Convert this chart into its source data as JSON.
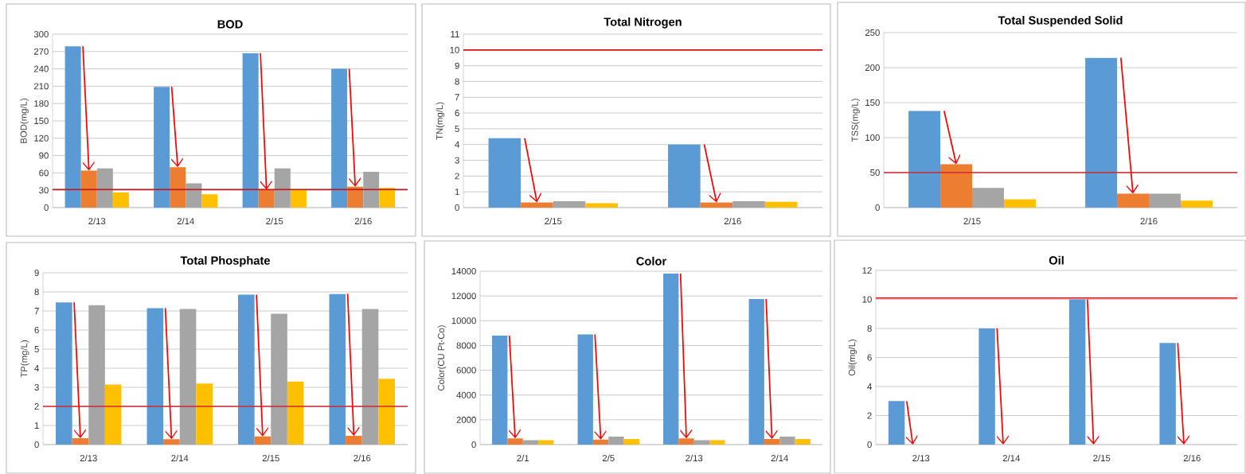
{
  "chart_data": [
    {
      "type": "bar",
      "title": "BOD",
      "ylabel": "BOD(mg/L)",
      "categories": [
        "2/13",
        "2/14",
        "2/15",
        "2/16"
      ],
      "ylim": [
        0,
        300
      ],
      "yticks": [
        0,
        30,
        60,
        90,
        120,
        150,
        180,
        210,
        240,
        270,
        300
      ],
      "grid": "y",
      "series": [
        {
          "color": "#5b9bd5",
          "values": [
            279,
            209,
            267,
            240
          ]
        },
        {
          "color": "#ed7d31",
          "values": [
            64,
            70,
            31,
            36
          ]
        },
        {
          "color": "#a5a5a5",
          "values": [
            68,
            42,
            68,
            62
          ]
        },
        {
          "color": "#ffc000",
          "values": [
            26,
            23,
            31,
            34
          ]
        }
      ],
      "ref_lines": [
        {
          "axis": "y",
          "value": 31,
          "color": "#c0161c"
        }
      ]
    },
    {
      "type": "bar",
      "title": "Total Nitrogen",
      "ylabel": "TN(mg/L)",
      "categories": [
        "2/15",
        "2/16"
      ],
      "ylim": [
        0,
        11
      ],
      "yticks": [
        0,
        1,
        2,
        3,
        4,
        5,
        6,
        7,
        8,
        9,
        10,
        11
      ],
      "grid": "y",
      "series": [
        {
          "color": "#5b9bd5",
          "values": [
            4.4,
            4.0
          ]
        },
        {
          "color": "#ed7d31",
          "values": [
            0.33,
            0.33
          ]
        },
        {
          "color": "#a5a5a5",
          "values": [
            0.41,
            0.41
          ]
        },
        {
          "color": "#ffc000",
          "values": [
            0.28,
            0.36
          ]
        }
      ],
      "ref_lines": [
        {
          "axis": "y",
          "value": 10,
          "color": "#e01010"
        }
      ]
    },
    {
      "type": "bar",
      "title": "Total Suspended Solid",
      "ylabel": "TSS(mg/L)",
      "categories": [
        "2/15",
        "2/16"
      ],
      "ylim": [
        0,
        250
      ],
      "yticks": [
        0,
        50,
        100,
        150,
        200,
        250
      ],
      "grid": "y",
      "series": [
        {
          "color": "#5b9bd5",
          "values": [
            138,
            214
          ]
        },
        {
          "color": "#ed7d31",
          "values": [
            62,
            20
          ]
        },
        {
          "color": "#a5a5a5",
          "values": [
            28,
            20
          ]
        },
        {
          "color": "#ffc000",
          "values": [
            12,
            10
          ]
        }
      ],
      "ref_lines": [
        {
          "axis": "y",
          "value": 50,
          "color": "#d0282e"
        }
      ]
    },
    {
      "type": "bar",
      "title": "Total Phosphate",
      "ylabel": "TP(mg/L)",
      "categories": [
        "2/13",
        "2/14",
        "2/15",
        "2/16"
      ],
      "ylim": [
        0,
        9
      ],
      "yticks": [
        0,
        1,
        2,
        3,
        4,
        5,
        6,
        7,
        8,
        9
      ],
      "grid": "y",
      "series": [
        {
          "color": "#5b9bd5",
          "values": [
            7.45,
            7.15,
            7.85,
            7.9
          ]
        },
        {
          "color": "#ed7d31",
          "values": [
            0.33,
            0.28,
            0.43,
            0.46
          ]
        },
        {
          "color": "#a5a5a5",
          "values": [
            7.3,
            7.1,
            6.85,
            7.1
          ]
        },
        {
          "color": "#ffc000",
          "values": [
            3.15,
            3.2,
            3.3,
            3.45
          ]
        }
      ],
      "ref_lines": [
        {
          "axis": "y",
          "value": 2,
          "color": "#d0282e"
        }
      ]
    },
    {
      "type": "bar",
      "title": "Color",
      "ylabel": "Color(CU Pt-Co)",
      "categories": [
        "2/1",
        "2/5",
        "2/13",
        "2/14"
      ],
      "ylim": [
        0,
        14000
      ],
      "yticks": [
        0,
        2000,
        4000,
        6000,
        8000,
        10000,
        12000,
        14000
      ],
      "grid": "y",
      "series": [
        {
          "color": "#5b9bd5",
          "values": [
            8800,
            8900,
            13800,
            11750
          ]
        },
        {
          "color": "#ed7d31",
          "values": [
            500,
            400,
            500,
            450
          ]
        },
        {
          "color": "#a5a5a5",
          "values": [
            350,
            650,
            350,
            650
          ]
        },
        {
          "color": "#ffc000",
          "values": [
            350,
            450,
            350,
            450
          ]
        }
      ]
    },
    {
      "type": "bar",
      "title": "Oil",
      "ylabel": "Oil(mg/L)",
      "categories": [
        "2/13",
        "2/14",
        "2/15",
        "2/16"
      ],
      "ylim": [
        0,
        12
      ],
      "yticks": [
        0,
        2,
        4,
        6,
        8,
        10,
        12
      ],
      "grid": "y",
      "series": [
        {
          "color": "#5b9bd5",
          "values": [
            3,
            8,
            10,
            7
          ]
        },
        {
          "color": "#ed7d31",
          "values": [
            null,
            null,
            null,
            null
          ]
        },
        {
          "color": "#a5a5a5",
          "values": [
            null,
            null,
            null,
            null
          ]
        },
        {
          "color": "#ffc000",
          "values": [
            null,
            null,
            null,
            null
          ]
        }
      ],
      "ref_lines": [
        {
          "axis": "y",
          "value": 10.1,
          "color": "#e01010"
        }
      ]
    }
  ]
}
